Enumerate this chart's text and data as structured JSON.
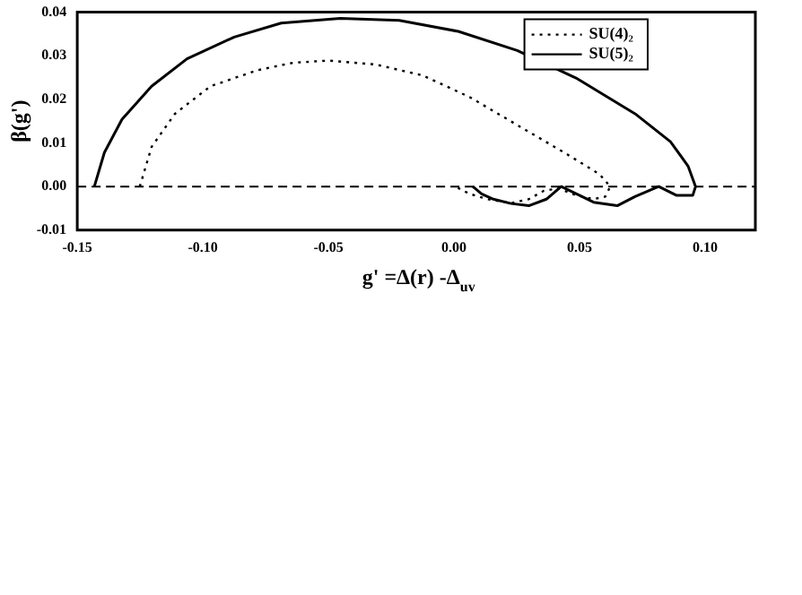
{
  "chart_data": {
    "type": "line",
    "xlabel": "g' =Δ(r) -Δ$_{uv}$",
    "ylabel": "β(g')",
    "xlim": [
      -0.15,
      0.12
    ],
    "xticks": [
      {
        "value": -0.15,
        "label": "-0.15"
      },
      {
        "value": -0.1,
        "label": "-0.10"
      },
      {
        "value": -0.05,
        "label": "-0.05"
      },
      {
        "value": 0,
        "label": "0.00"
      },
      {
        "value": 0.05,
        "label": "0.05"
      },
      {
        "value": 0.1,
        "label": "0.10"
      }
    ],
    "ylim": [
      -0.01,
      0.04
    ],
    "yticks": [
      {
        "value": -0.01,
        "label": "-0.01"
      },
      {
        "value": 0,
        "label": "0.00"
      },
      {
        "value": 0.01,
        "label": "0.01"
      },
      {
        "value": 0.02,
        "label": "0.02"
      },
      {
        "value": 0.03,
        "label": "0.03"
      },
      {
        "value": 0.04,
        "label": "0.04"
      }
    ],
    "legend": "top right",
    "marker": "none",
    "grid": false,
    "ref_lines": [
      {
        "axis": "y",
        "value": 0,
        "label": null,
        "color": "#000000",
        "line_style": "dashed"
      }
    ],
    "series": [
      {
        "name": "SU(4)₂",
        "color": "#000000",
        "line_style": "dotted",
        "x": [
          -0.1251,
          -0.1204,
          -0.1111,
          -0.097,
          -0.0782,
          -0.0641,
          -0.05,
          -0.0312,
          -0.0125,
          0.0063,
          0.0252,
          0.0439,
          0.058,
          0.0622,
          0.0603,
          0.0556,
          0.0486,
          0.0415,
          0.0357,
          0.0298,
          0.0227,
          0.0134,
          0.0063,
          0.0005
        ],
        "values": [
          0,
          0.0091,
          0.0167,
          0.023,
          0.0267,
          0.0284,
          0.0289,
          0.028,
          0.0255,
          0.0205,
          0.0141,
          0.0078,
          0.0028,
          0,
          -0.0023,
          -0.0029,
          -0.002,
          -0.0004,
          -0.001,
          -0.0029,
          -0.0038,
          -0.0029,
          -0.0017,
          0
        ]
      },
      {
        "name": "SU(5)₂",
        "color": "#000000",
        "line_style": "solid",
        "x": [
          -0.1432,
          -0.1392,
          -0.1322,
          -0.1204,
          -0.1063,
          -0.0875,
          -0.0688,
          -0.0453,
          -0.0218,
          0.0017,
          0.0252,
          0.0486,
          0.0721,
          0.0862,
          0.0932,
          0.0962,
          0.0951,
          0.0885,
          0.0815,
          0.0721,
          0.065,
          0.0556,
          0.0427,
          0.0368,
          0.0298,
          0.0227,
          0.0157,
          0.011,
          0.0075
        ],
        "values": [
          0,
          0.0078,
          0.0154,
          0.023,
          0.0293,
          0.0343,
          0.0375,
          0.0386,
          0.0381,
          0.0356,
          0.0312,
          0.0249,
          0.0167,
          0.0103,
          0.0047,
          0,
          -0.002,
          -0.002,
          0,
          -0.0023,
          -0.0044,
          -0.0036,
          0,
          -0.0029,
          -0.0044,
          -0.0039,
          -0.0029,
          -0.0017,
          0
        ]
      }
    ]
  }
}
